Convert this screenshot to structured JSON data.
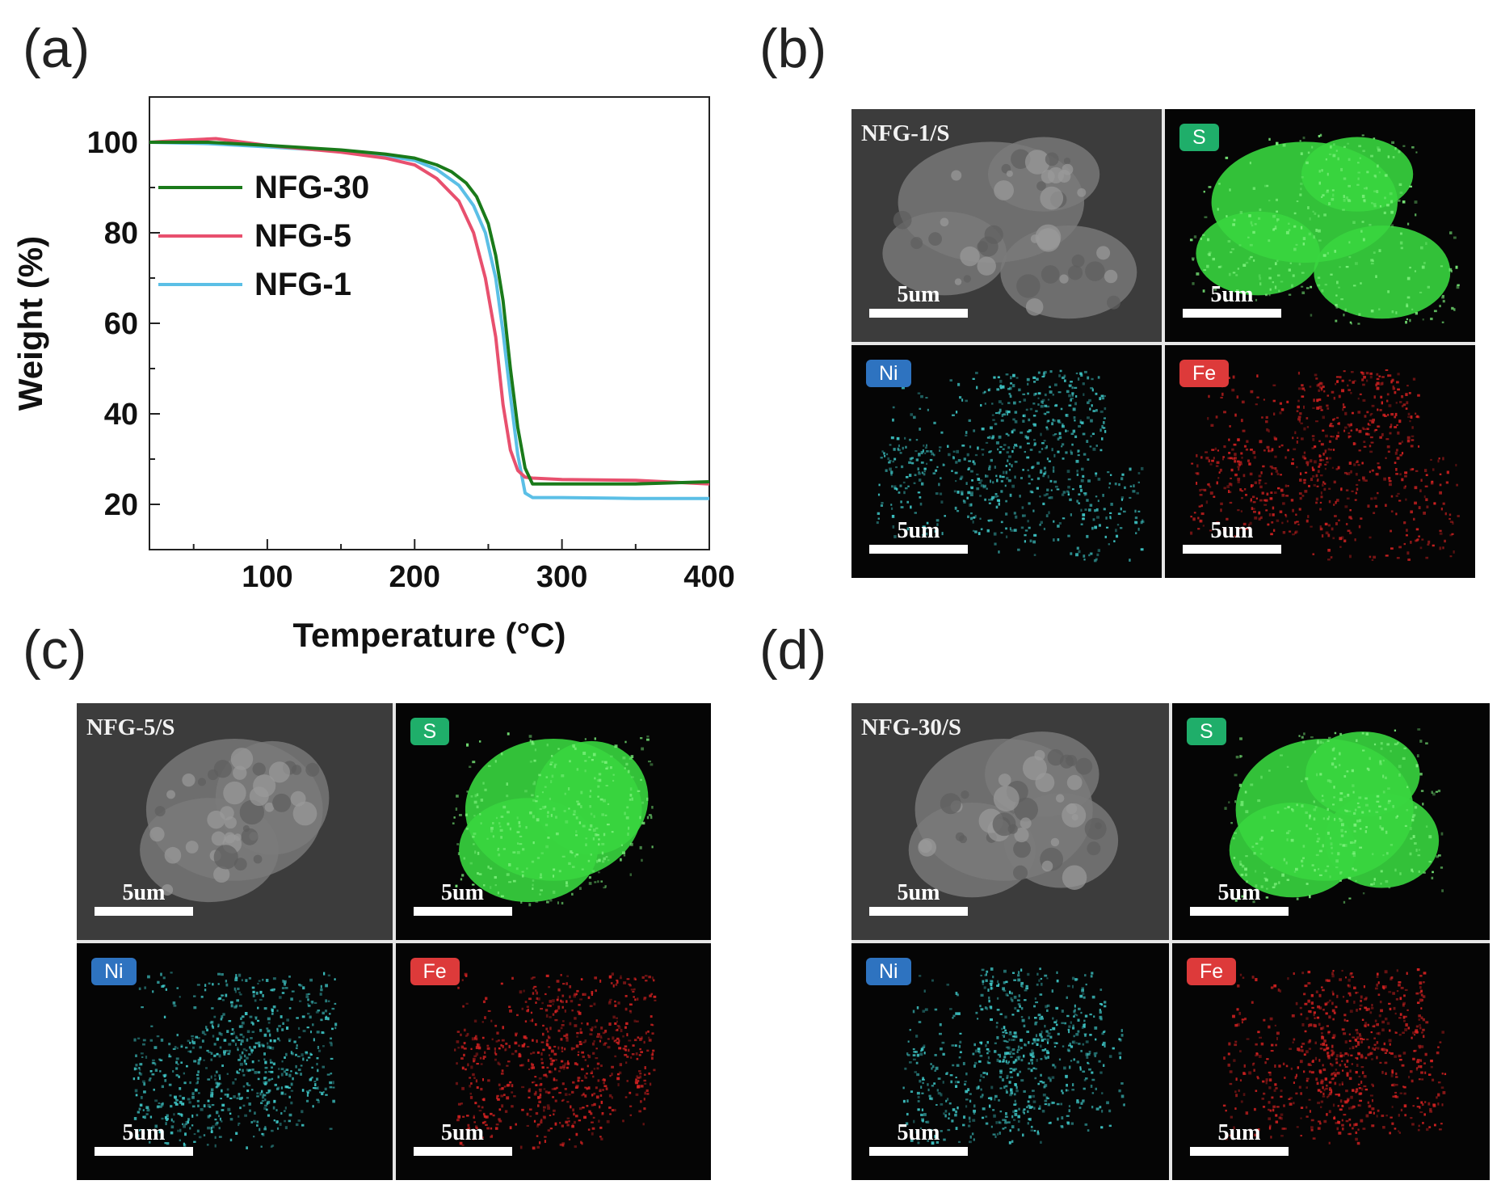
{
  "panels": {
    "a": "(a)",
    "b": "(b)",
    "c": "(c)",
    "d": "(d)"
  },
  "chart_data": {
    "type": "line",
    "xlabel": "Temperature (°C)",
    "ylabel": "Weight (%)",
    "xlim": [
      20,
      400
    ],
    "ylim": [
      10,
      110
    ],
    "xticks": [
      100,
      200,
      300,
      400
    ],
    "yticks": [
      20,
      40,
      60,
      80,
      100
    ],
    "legend_position": "left",
    "series": [
      {
        "name": "NFG-30",
        "color": "#1a7a1a",
        "x": [
          20,
          60,
          100,
          150,
          180,
          200,
          215,
          225,
          235,
          242,
          250,
          255,
          260,
          265,
          270,
          275,
          280,
          300,
          350,
          400
        ],
        "y": [
          100,
          100,
          99.3,
          98.3,
          97.4,
          96.5,
          95,
          93.5,
          91,
          88,
          82,
          75,
          65,
          50,
          37,
          28,
          24.5,
          24.5,
          24.5,
          25
        ]
      },
      {
        "name": "NFG-5",
        "color": "#e8506e",
        "x": [
          20,
          40,
          65,
          100,
          150,
          180,
          200,
          215,
          230,
          240,
          248,
          255,
          260,
          265,
          270,
          275,
          280,
          300,
          350,
          400
        ],
        "y": [
          100,
          100.4,
          100.8,
          99.3,
          97.8,
          96.5,
          95,
          92,
          87,
          80,
          70,
          57,
          42,
          32,
          27.5,
          26,
          25.8,
          25.5,
          25.3,
          24.5
        ]
      },
      {
        "name": "NFG-1",
        "color": "#5bbfe6",
        "x": [
          20,
          60,
          100,
          150,
          180,
          200,
          215,
          230,
          240,
          248,
          255,
          260,
          265,
          270,
          275,
          280,
          300,
          350,
          400
        ],
        "y": [
          100,
          99.7,
          99,
          98,
          97,
          96,
          94,
          90.5,
          86,
          80,
          70,
          58,
          44,
          31,
          22.5,
          21.5,
          21.5,
          21.3,
          21.3
        ]
      }
    ]
  },
  "sem_panels": [
    {
      "id": "b",
      "sample": "NFG-1/S",
      "tiles": [
        {
          "badge": "",
          "scale": "5um"
        },
        {
          "badge": "S",
          "scale": "5um"
        },
        {
          "badge": "Ni",
          "scale": "5um"
        },
        {
          "badge": "Fe",
          "scale": "5um"
        }
      ]
    },
    {
      "id": "c",
      "sample": "NFG-5/S",
      "tiles": [
        {
          "badge": "",
          "scale": "5um"
        },
        {
          "badge": "S",
          "scale": "5um"
        },
        {
          "badge": "Ni",
          "scale": "5um"
        },
        {
          "badge": "Fe",
          "scale": "5um"
        }
      ]
    },
    {
      "id": "d",
      "sample": "NFG-30/S",
      "tiles": [
        {
          "badge": "",
          "scale": "5um"
        },
        {
          "badge": "S",
          "scale": "5um"
        },
        {
          "badge": "Ni",
          "scale": "5um"
        },
        {
          "badge": "Fe",
          "scale": "5um"
        }
      ]
    }
  ],
  "colors": {
    "sem_gray": "#5a5a5a",
    "s_green": "#39d63f",
    "ni_cyan": "#3fc9c9",
    "fe_red": "#d72222",
    "badge_s": "#1fae6a",
    "badge_ni": "#2e73c0",
    "badge_fe": "#dd3a3a"
  }
}
